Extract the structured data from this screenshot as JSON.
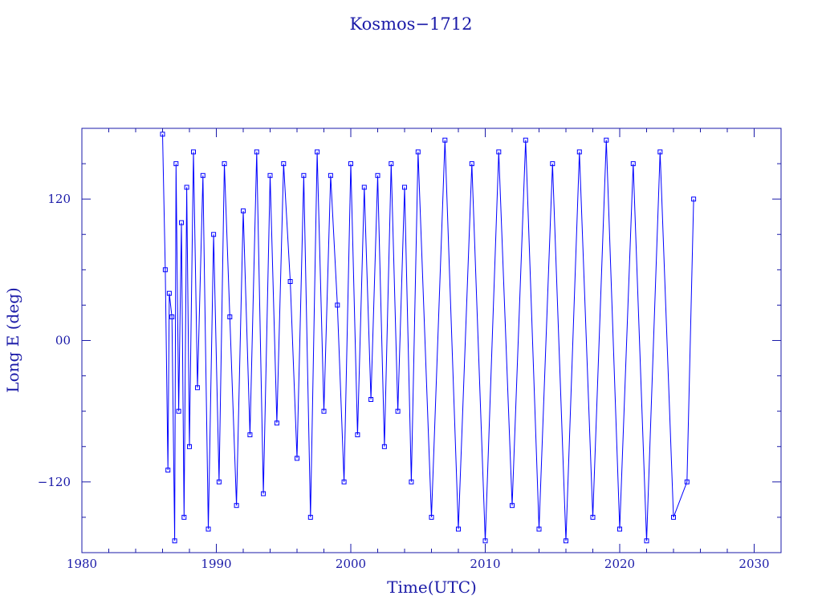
{
  "chart_data": {
    "type": "line",
    "title": "Kosmos−1712",
    "xlabel": "Time(UTC)",
    "ylabel": "Long E (deg)",
    "xlim": [
      1980,
      2032
    ],
    "ylim": [
      -180,
      180
    ],
    "x_ticks": [
      1980,
      1990,
      2000,
      2010,
      2020,
      2030
    ],
    "x_tick_labels": [
      "1980",
      "1990",
      "2000",
      "2010",
      "2020",
      "2030"
    ],
    "y_ticks": [
      -120,
      0,
      120
    ],
    "y_tick_labels": [
      "−120",
      "00",
      "120"
    ],
    "grid": false,
    "markers": "square",
    "colors": {
      "series": "#0000ff",
      "axes": "#1a1aa8"
    },
    "series": [
      {
        "x": [
          1986.0,
          1986.2,
          1986.4,
          1986.5,
          1986.7,
          1986.9,
          1987.0,
          1987.2,
          1987.4,
          1987.6,
          1987.8,
          1988.0,
          1988.3,
          1988.6,
          1989.0,
          1989.4,
          1989.8,
          1990.2,
          1990.6,
          1991.0,
          1991.5,
          1992.0,
          1992.5,
          1993.0,
          1993.5,
          1994.0,
          1994.5,
          1995.0,
          1995.5,
          1996.0,
          1996.5,
          1997.0,
          1997.5,
          1998.0,
          1998.5,
          1999.0,
          1999.5,
          2000.0,
          2000.5,
          2001.0,
          2001.5,
          2002.0,
          2002.5,
          2003.0,
          2003.5,
          2004.0,
          2004.5,
          2005.0,
          2006.0,
          2007.0,
          2008.0,
          2009.0,
          2010.0,
          2011.0,
          2012.0,
          2013.0,
          2014.0,
          2015.0,
          2016.0,
          2017.0,
          2018.0,
          2019.0,
          2020.0,
          2021.0,
          2022.0,
          2023.0,
          2024.0,
          2025.0,
          2025.5
        ],
        "y": [
          175,
          60,
          -110,
          40,
          20,
          -170,
          150,
          -60,
          100,
          -150,
          130,
          -90,
          160,
          -40,
          140,
          -160,
          90,
          -120,
          150,
          20,
          -140,
          110,
          -80,
          160,
          -130,
          140,
          -70,
          150,
          50,
          -100,
          140,
          -150,
          160,
          -60,
          140,
          30,
          -120,
          150,
          -80,
          130,
          -50,
          140,
          -90,
          150,
          -60,
          130,
          -120,
          160,
          -150,
          170,
          -160,
          150,
          -170,
          160,
          -140,
          170,
          -160,
          150,
          -170,
          160,
          -150,
          170,
          -160,
          150,
          -170,
          160,
          -150,
          -120,
          120
        ]
      }
    ]
  }
}
